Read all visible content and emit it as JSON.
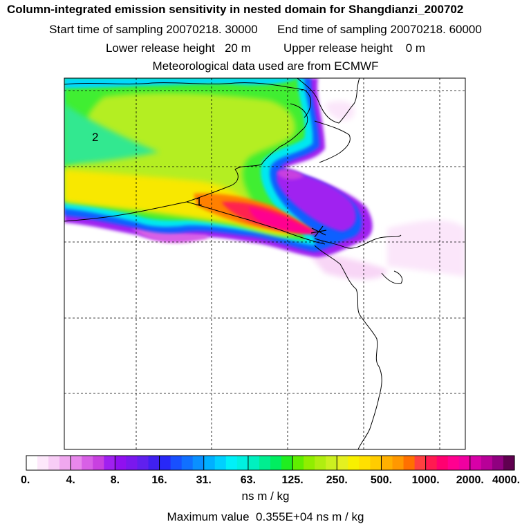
{
  "header": {
    "title": "Column-integrated emission sensitivity in nested domain for Shangdianzi_200702",
    "start_label": "Start time of sampling",
    "start_value": "20070218. 30000",
    "end_label": "End time of sampling",
    "end_value": "20070218. 60000",
    "lower_label": "Lower release height",
    "lower_value": "20 m",
    "upper_label": "Upper release height",
    "upper_value": "0 m",
    "met_line": "Meteorological data used are from ECMWF"
  },
  "map": {
    "labels": [
      "2",
      "1"
    ],
    "release_marker": "receptor-star-icon"
  },
  "colorbar": {
    "ticks": [
      "0.",
      "4.",
      "8.",
      "16.",
      "31.",
      "63.",
      "125.",
      "250.",
      "500.",
      "1000.",
      "2000.",
      "4000."
    ],
    "colors": [
      "#ffffff",
      "#fde8fb",
      "#f8cdf6",
      "#f0a8ef",
      "#e888ec",
      "#d860e6",
      "#c840e0",
      "#a020f0",
      "#9010f0",
      "#7a18ee",
      "#6020ee",
      "#4020f0",
      "#2828f8",
      "#1850ff",
      "#1070ff",
      "#0a90ff",
      "#00b0ff",
      "#00d0ff",
      "#00f0f8",
      "#00f0e0",
      "#00f0c0",
      "#00ee90",
      "#00ee60",
      "#20ee20",
      "#60ee00",
      "#90ee00",
      "#b0ee10",
      "#ccf020",
      "#e4f020",
      "#f8f000",
      "#ffe000",
      "#ffcc00",
      "#ffb000",
      "#ff9800",
      "#ff7000",
      "#ff4040",
      "#ff1a50",
      "#ff0070",
      "#ff0090",
      "#f000a0",
      "#d800a8",
      "#b80098",
      "#900080",
      "#600050"
    ],
    "unit": "ns m / kg"
  },
  "footer": {
    "max_label": "Maximum value",
    "max_value": "0.355E+04 ns m / kg"
  }
}
